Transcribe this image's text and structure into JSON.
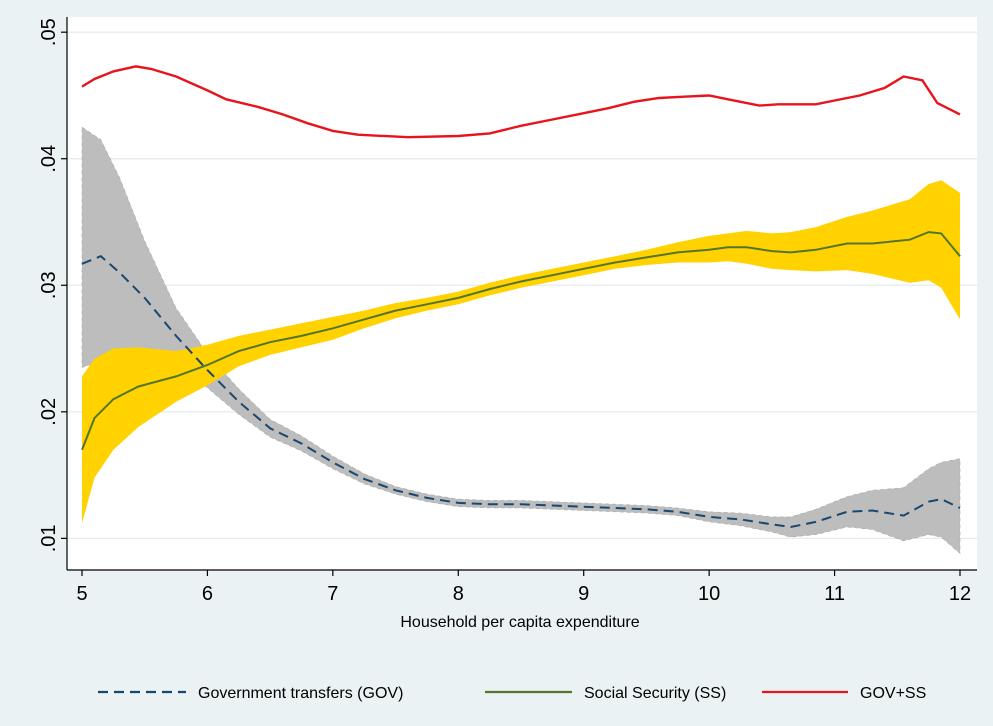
{
  "chart_data": {
    "type": "line",
    "title": "",
    "xlabel": "Household per capita expenditure",
    "ylabel": "",
    "xlim": [
      5,
      12
    ],
    "ylim": [
      0.0075,
      0.0512
    ],
    "x_ticks": [
      5,
      6,
      7,
      8,
      9,
      10,
      11,
      12
    ],
    "x_tick_labels": [
      "5",
      "6",
      "7",
      "8",
      "9",
      "10",
      "11",
      "12"
    ],
    "y_ticks": [
      0.01,
      0.02,
      0.03,
      0.04,
      0.05
    ],
    "y_tick_labels": [
      ".01",
      ".02",
      ".03",
      ".04",
      ".05"
    ],
    "grid": true,
    "legend_position": "bottom",
    "colors": {
      "background": "#eaf2f3",
      "plot_background": "#ffffff",
      "gov_line": "#1a476f",
      "gov_band": "#bdbdbd",
      "ss_line": "#55752f",
      "ss_band": "#ffd200",
      "total_line": "#e8141c"
    },
    "series": [
      {
        "name": "Government transfers (GOV)",
        "style": "dashed",
        "x": [
          5,
          5.15,
          5.3,
          5.5,
          5.75,
          6,
          6.25,
          6.5,
          6.75,
          7,
          7.25,
          7.5,
          7.75,
          8,
          8.25,
          8.5,
          8.75,
          9,
          9.25,
          9.5,
          9.75,
          10,
          10.25,
          10.5,
          10.65,
          10.85,
          11.1,
          11.3,
          11.55,
          11.75,
          11.85,
          12
        ],
        "y": [
          0.0317,
          0.0323,
          0.031,
          0.029,
          0.026,
          0.0233,
          0.0208,
          0.0187,
          0.0175,
          0.016,
          0.0147,
          0.0138,
          0.0132,
          0.0128,
          0.0127,
          0.0127,
          0.0126,
          0.0125,
          0.0124,
          0.0123,
          0.0121,
          0.0117,
          0.0115,
          0.0111,
          0.0109,
          0.0113,
          0.0121,
          0.0122,
          0.0118,
          0.0129,
          0.0131,
          0.0124
        ],
        "ci_upper": [
          0.0425,
          0.0415,
          0.0385,
          0.0335,
          0.0282,
          0.0246,
          0.0218,
          0.0194,
          0.0181,
          0.0165,
          0.0151,
          0.0141,
          0.0135,
          0.0131,
          0.013,
          0.013,
          0.0129,
          0.0128,
          0.0127,
          0.0126,
          0.0124,
          0.0121,
          0.012,
          0.0117,
          0.0117,
          0.0123,
          0.0133,
          0.0138,
          0.014,
          0.0155,
          0.016,
          0.0163
        ],
        "ci_lower": [
          0.0235,
          0.024,
          0.0242,
          0.0245,
          0.0238,
          0.0219,
          0.0198,
          0.018,
          0.0169,
          0.0155,
          0.0143,
          0.0135,
          0.0129,
          0.0125,
          0.0124,
          0.0124,
          0.0123,
          0.0122,
          0.0121,
          0.012,
          0.0118,
          0.0113,
          0.011,
          0.0105,
          0.0101,
          0.0103,
          0.0109,
          0.0107,
          0.0098,
          0.0103,
          0.0101,
          0.0088
        ]
      },
      {
        "name": "Social Security (SS)",
        "style": "solid",
        "x": [
          5,
          5.1,
          5.25,
          5.45,
          5.75,
          6,
          6.25,
          6.5,
          6.75,
          7,
          7.25,
          7.5,
          7.75,
          8,
          8.25,
          8.5,
          8.75,
          9,
          9.25,
          9.5,
          9.75,
          10,
          10.15,
          10.3,
          10.5,
          10.65,
          10.85,
          11.1,
          11.3,
          11.6,
          11.75,
          11.85,
          12
        ],
        "y": [
          0.017,
          0.0195,
          0.021,
          0.022,
          0.0228,
          0.0237,
          0.0248,
          0.0255,
          0.026,
          0.0266,
          0.0273,
          0.028,
          0.0285,
          0.029,
          0.0297,
          0.0303,
          0.0308,
          0.0313,
          0.0318,
          0.0322,
          0.0326,
          0.0328,
          0.033,
          0.033,
          0.0327,
          0.0326,
          0.0328,
          0.0333,
          0.0333,
          0.0336,
          0.0342,
          0.0341,
          0.0323
        ],
        "ci_upper": [
          0.0228,
          0.0242,
          0.025,
          0.0251,
          0.0248,
          0.0253,
          0.026,
          0.0265,
          0.027,
          0.0275,
          0.028,
          0.0286,
          0.029,
          0.0295,
          0.0302,
          0.0308,
          0.0313,
          0.0318,
          0.0323,
          0.0328,
          0.0334,
          0.0339,
          0.0341,
          0.0343,
          0.0341,
          0.0342,
          0.0346,
          0.0354,
          0.0359,
          0.0368,
          0.038,
          0.0383,
          0.0373
        ],
        "ci_lower": [
          0.0112,
          0.0148,
          0.017,
          0.0188,
          0.0208,
          0.0221,
          0.0236,
          0.0245,
          0.0251,
          0.0257,
          0.0266,
          0.0274,
          0.028,
          0.0285,
          0.0292,
          0.0298,
          0.0303,
          0.0308,
          0.0313,
          0.0316,
          0.0318,
          0.0318,
          0.0319,
          0.0317,
          0.0313,
          0.0312,
          0.0311,
          0.0312,
          0.0309,
          0.0302,
          0.0304,
          0.0298,
          0.0273
        ]
      },
      {
        "name": "GOV+SS",
        "style": "solid",
        "x": [
          5,
          5.1,
          5.25,
          5.43,
          5.55,
          5.75,
          6,
          6.15,
          6.4,
          6.6,
          6.8,
          7,
          7.2,
          7.6,
          8,
          8.25,
          8.5,
          8.75,
          9,
          9.2,
          9.4,
          9.6,
          9.8,
          10,
          10.15,
          10.3,
          10.4,
          10.55,
          10.85,
          11,
          11.2,
          11.4,
          11.55,
          11.7,
          11.82,
          12
        ],
        "y": [
          0.0457,
          0.0463,
          0.0469,
          0.0473,
          0.0471,
          0.0465,
          0.0454,
          0.0447,
          0.0441,
          0.0435,
          0.0428,
          0.0422,
          0.0419,
          0.0417,
          0.0418,
          0.042,
          0.0426,
          0.0431,
          0.0436,
          0.044,
          0.0445,
          0.0448,
          0.0449,
          0.045,
          0.0447,
          0.0444,
          0.0442,
          0.0443,
          0.0443,
          0.0446,
          0.045,
          0.0456,
          0.0465,
          0.0462,
          0.0444,
          0.0435
        ]
      }
    ]
  }
}
